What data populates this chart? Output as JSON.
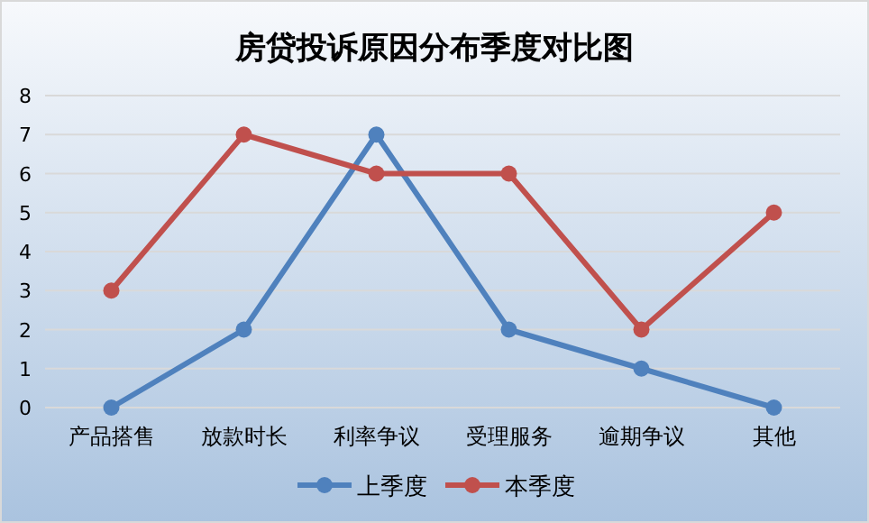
{
  "chart_data": {
    "type": "line",
    "title": "房贷投诉原因分布季度对比图",
    "categories": [
      "产品搭售",
      "放款时长",
      "利率争议",
      "受理服务",
      "逾期争议",
      "其他"
    ],
    "series": [
      {
        "name": "上季度",
        "color": "#4f81bd",
        "values": [
          0,
          2,
          7,
          2,
          1,
          0
        ]
      },
      {
        "name": "本季度",
        "color": "#c0504d",
        "values": [
          3,
          7,
          6,
          6,
          2,
          5
        ]
      }
    ],
    "ylim": [
      0,
      8
    ],
    "yticks": [
      0,
      1,
      2,
      3,
      4,
      5,
      6,
      7,
      8
    ],
    "grid": "y",
    "legend": "bottom",
    "marker": "circle",
    "line_style": "solid"
  }
}
